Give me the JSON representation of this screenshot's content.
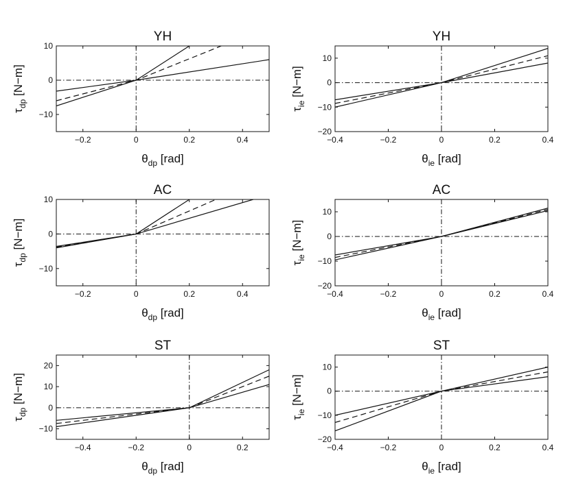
{
  "chart_data": [
    {
      "type": "line",
      "title": "YH",
      "xlabel": {
        "symbol": "θ",
        "sub": "dp",
        "unit": "[rad]"
      },
      "ylabel": {
        "symbol": "τ",
        "sub": "dp",
        "unit": "[N−m]"
      },
      "xlim": [
        -0.3,
        0.5
      ],
      "ylim": [
        -15,
        10
      ],
      "xticks": [
        {
          "v": -0.2,
          "label": "-0.2"
        },
        {
          "v": 0,
          "label": "0"
        },
        {
          "v": 0.2,
          "label": "0.2"
        },
        {
          "v": 0.4,
          "label": "0.4"
        }
      ],
      "yticks": [
        {
          "v": -10,
          "label": "-10"
        },
        {
          "v": 0,
          "label": "0"
        },
        {
          "v": 10,
          "label": "10"
        }
      ],
      "ref_lines": {
        "x": 0,
        "y": 0
      },
      "series": [
        {
          "style": "solid",
          "x": [
            -0.3,
            0,
            0.2
          ],
          "y": [
            -7.5,
            0,
            10
          ]
        },
        {
          "style": "dashed",
          "x": [
            -0.3,
            0,
            0.32
          ],
          "y": [
            -6,
            0,
            10
          ]
        },
        {
          "style": "solid",
          "x": [
            -0.3,
            0,
            0.5
          ],
          "y": [
            -3.2,
            0,
            6
          ]
        }
      ]
    },
    {
      "type": "line",
      "title": "YH",
      "xlabel": {
        "symbol": "θ",
        "sub": "ie",
        "unit": "[rad]"
      },
      "ylabel": {
        "symbol": "τ",
        "sub": "ie",
        "unit": "[N−m]"
      },
      "xlim": [
        -0.4,
        0.4
      ],
      "ylim": [
        -20,
        15
      ],
      "xticks": [
        {
          "v": -0.4,
          "label": "-0.4"
        },
        {
          "v": -0.2,
          "label": "-0.2"
        },
        {
          "v": 0,
          "label": "0"
        },
        {
          "v": 0.2,
          "label": "0.2"
        },
        {
          "v": 0.4,
          "label": "0.4"
        }
      ],
      "yticks": [
        {
          "v": -20,
          "label": "-20"
        },
        {
          "v": -10,
          "label": "-10"
        },
        {
          "v": 0,
          "label": "0"
        },
        {
          "v": 10,
          "label": "10"
        }
      ],
      "ref_lines": {
        "x": 0,
        "y": 0
      },
      "series": [
        {
          "style": "solid",
          "x": [
            -0.4,
            0,
            0.4
          ],
          "y": [
            -10,
            0,
            14
          ]
        },
        {
          "style": "dashed",
          "x": [
            -0.4,
            0,
            0.4
          ],
          "y": [
            -8.5,
            0,
            11
          ]
        },
        {
          "style": "solid",
          "x": [
            -0.4,
            0,
            0.4
          ],
          "y": [
            -7,
            0,
            8
          ]
        }
      ]
    },
    {
      "type": "line",
      "title": "AC",
      "xlabel": {
        "symbol": "θ",
        "sub": "dp",
        "unit": "[rad]"
      },
      "ylabel": {
        "symbol": "τ",
        "sub": "dp",
        "unit": "[N−m]"
      },
      "xlim": [
        -0.3,
        0.5
      ],
      "ylim": [
        -15,
        10
      ],
      "xticks": [
        {
          "v": -0.2,
          "label": "-0.2"
        },
        {
          "v": 0,
          "label": "0"
        },
        {
          "v": 0.2,
          "label": "0.2"
        },
        {
          "v": 0.4,
          "label": "0.4"
        }
      ],
      "yticks": [
        {
          "v": -10,
          "label": "-10"
        },
        {
          "v": 0,
          "label": "0"
        },
        {
          "v": 10,
          "label": "10"
        }
      ],
      "ref_lines": {
        "x": 0,
        "y": 0
      },
      "series": [
        {
          "style": "solid",
          "x": [
            -0.3,
            0,
            0.2
          ],
          "y": [
            -4,
            0,
            10
          ]
        },
        {
          "style": "dashed",
          "x": [
            -0.3,
            0,
            0.3
          ],
          "y": [
            -3.8,
            0,
            10
          ]
        },
        {
          "style": "solid",
          "x": [
            -0.3,
            0,
            0.44
          ],
          "y": [
            -3.6,
            0,
            10
          ]
        }
      ]
    },
    {
      "type": "line",
      "title": "AC",
      "xlabel": {
        "symbol": "θ",
        "sub": "ie",
        "unit": "[rad]"
      },
      "ylabel": {
        "symbol": "τ",
        "sub": "ie",
        "unit": "[N−m]"
      },
      "xlim": [
        -0.4,
        0.4
      ],
      "ylim": [
        -20,
        15
      ],
      "xticks": [
        {
          "v": -0.4,
          "label": "-0.4"
        },
        {
          "v": -0.2,
          "label": "-0.2"
        },
        {
          "v": 0,
          "label": "0"
        },
        {
          "v": 0.2,
          "label": "0.2"
        },
        {
          "v": 0.4,
          "label": "0.4"
        }
      ],
      "yticks": [
        {
          "v": -20,
          "label": "-20"
        },
        {
          "v": -10,
          "label": "-10"
        },
        {
          "v": 0,
          "label": "0"
        },
        {
          "v": 10,
          "label": "10"
        }
      ],
      "ref_lines": {
        "x": 0,
        "y": 0
      },
      "series": [
        {
          "style": "solid",
          "x": [
            -0.4,
            0,
            0.4
          ],
          "y": [
            -9.5,
            0,
            11.5
          ]
        },
        {
          "style": "dashed",
          "x": [
            -0.4,
            0,
            0.4
          ],
          "y": [
            -8.5,
            0,
            11
          ]
        },
        {
          "style": "solid",
          "x": [
            -0.4,
            0,
            0.4
          ],
          "y": [
            -7.5,
            0,
            10.5
          ]
        }
      ]
    },
    {
      "type": "line",
      "title": "ST",
      "xlabel": {
        "symbol": "θ",
        "sub": "dp",
        "unit": "[rad]"
      },
      "ylabel": {
        "symbol": "τ",
        "sub": "dp",
        "unit": "[N−m]"
      },
      "xlim": [
        -0.5,
        0.3
      ],
      "ylim": [
        -15,
        25
      ],
      "xticks": [
        {
          "v": -0.4,
          "label": "-0.4"
        },
        {
          "v": -0.2,
          "label": "-0.2"
        },
        {
          "v": 0,
          "label": "0"
        },
        {
          "v": 0.2,
          "label": "0.2"
        }
      ],
      "yticks": [
        {
          "v": -10,
          "label": "-10"
        },
        {
          "v": 0,
          "label": "0"
        },
        {
          "v": 10,
          "label": "10"
        },
        {
          "v": 20,
          "label": "20"
        }
      ],
      "ref_lines": {
        "x": 0,
        "y": 0
      },
      "series": [
        {
          "style": "solid",
          "x": [
            -0.5,
            0,
            0.3
          ],
          "y": [
            -9,
            0,
            18
          ]
        },
        {
          "style": "dashed",
          "x": [
            -0.5,
            0,
            0.3
          ],
          "y": [
            -7.5,
            0,
            15
          ]
        },
        {
          "style": "solid",
          "x": [
            -0.5,
            0,
            0.3
          ],
          "y": [
            -6,
            0,
            11
          ]
        }
      ]
    },
    {
      "type": "line",
      "title": "ST",
      "xlabel": {
        "symbol": "θ",
        "sub": "ie",
        "unit": "[rad]"
      },
      "ylabel": {
        "symbol": "τ",
        "sub": "ie",
        "unit": "[N−m]"
      },
      "xlim": [
        -0.4,
        0.4
      ],
      "ylim": [
        -20,
        15
      ],
      "xticks": [
        {
          "v": -0.4,
          "label": "-0.4"
        },
        {
          "v": -0.2,
          "label": "-0.2"
        },
        {
          "v": 0,
          "label": "0"
        },
        {
          "v": 0.2,
          "label": "0.2"
        },
        {
          "v": 0.4,
          "label": "0.4"
        }
      ],
      "yticks": [
        {
          "v": -20,
          "label": "-20"
        },
        {
          "v": -10,
          "label": "-10"
        },
        {
          "v": 0,
          "label": "0"
        },
        {
          "v": 10,
          "label": "10"
        }
      ],
      "ref_lines": {
        "x": 0,
        "y": 0
      },
      "series": [
        {
          "style": "solid",
          "x": [
            -0.4,
            0,
            0.4
          ],
          "y": [
            -16.5,
            0,
            10
          ]
        },
        {
          "style": "dashed",
          "x": [
            -0.4,
            0,
            0.4
          ],
          "y": [
            -13,
            0,
            8
          ]
        },
        {
          "style": "solid",
          "x": [
            -0.4,
            0,
            0.4
          ],
          "y": [
            -10,
            0,
            6
          ]
        }
      ]
    }
  ]
}
